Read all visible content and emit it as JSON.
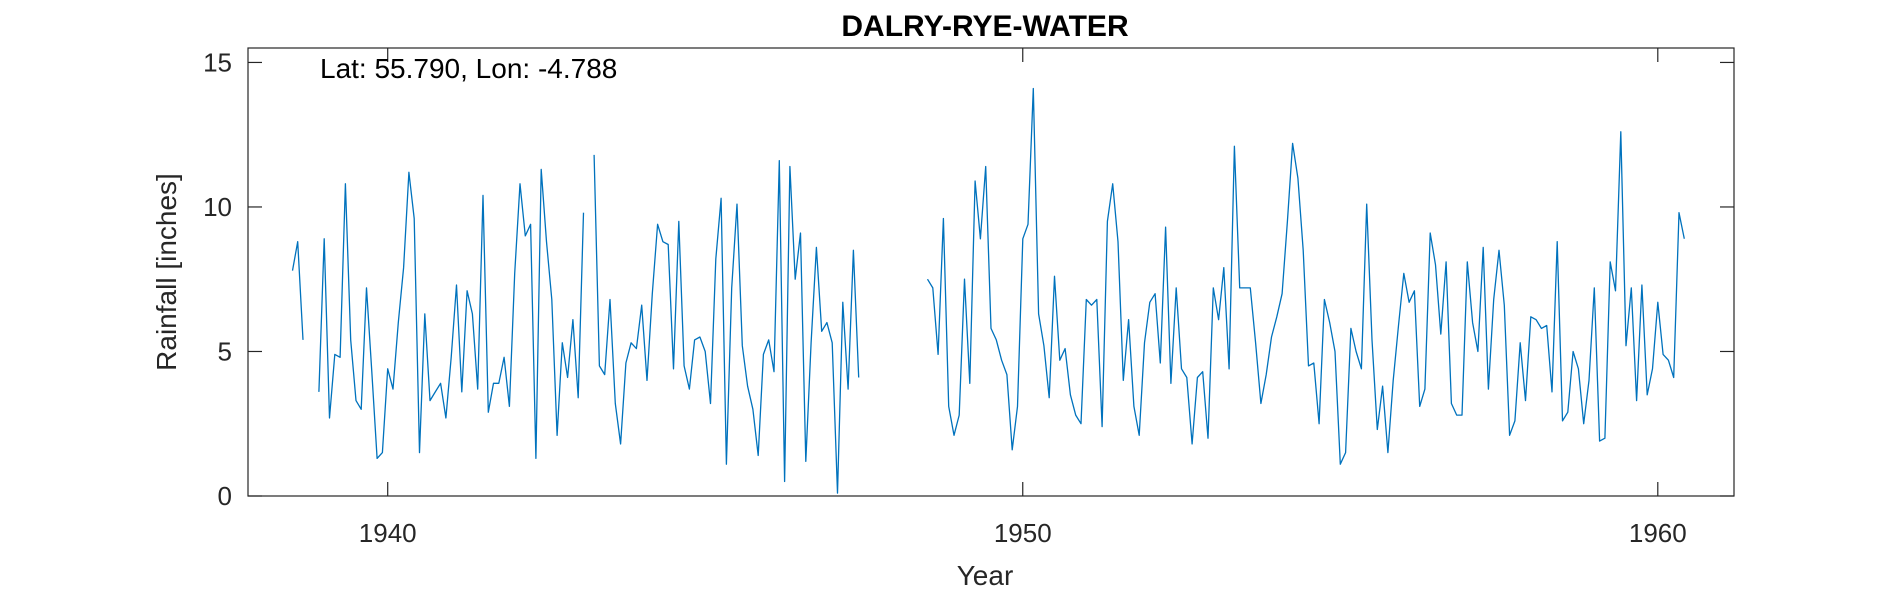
{
  "chart_data": {
    "type": "line",
    "title": "DALRY-RYE-WATER",
    "xlabel": "Year",
    "ylabel": "Rainfall [inches]",
    "annotation": "Lat: 55.790, Lon: -4.788",
    "xlim": [
      1937.8,
      1961.2
    ],
    "ylim": [
      0,
      15.5
    ],
    "xticks": [
      1940,
      1950,
      1960
    ],
    "yticks": [
      0,
      5,
      10,
      15
    ],
    "grid": false,
    "line_color": "#0072BD",
    "series": [
      {
        "x_start": 1938.5,
        "step": 0.0833333,
        "values": [
          7.8,
          8.8,
          5.4,
          null,
          null,
          3.6,
          8.9,
          2.7,
          4.9,
          4.8,
          10.8,
          5.4,
          3.3,
          3.0,
          7.2,
          4.3,
          1.3,
          1.5,
          4.4,
          3.7,
          6.0,
          7.9,
          11.2,
          9.6,
          1.5,
          6.3,
          3.3,
          3.6,
          3.9,
          2.7,
          4.8,
          7.3,
          3.6,
          7.1,
          6.3,
          3.7,
          10.4,
          2.9,
          3.9,
          3.9,
          4.8,
          3.1,
          7.7,
          10.8,
          9.0,
          9.4,
          1.3,
          11.3,
          8.8,
          6.8,
          2.1,
          5.3,
          4.1,
          6.1,
          3.4,
          9.8,
          null,
          11.8,
          4.5,
          4.2,
          6.8,
          3.2,
          1.8,
          4.6,
          5.3,
          5.1,
          6.6,
          4.0,
          7.0,
          9.4,
          8.8,
          8.7,
          4.4,
          9.5,
          4.5,
          3.7,
          5.4,
          5.5,
          5.0,
          3.2,
          8.2,
          10.3,
          1.1,
          7.2,
          10.1,
          5.2,
          3.8,
          3.0,
          1.4,
          4.9,
          5.4,
          4.3,
          11.6,
          0.5,
          11.4,
          7.5,
          9.1,
          1.2,
          5.3,
          8.6,
          5.7,
          6.0,
          5.3,
          0.1,
          6.7,
          3.7,
          8.5,
          4.1
        ]
      },
      {
        "x_start": 1948.5,
        "step": 0.0833333,
        "values": [
          7.5,
          7.2,
          4.9,
          9.6,
          3.1,
          2.1,
          2.8,
          7.5,
          3.9,
          10.9,
          8.9,
          11.4,
          5.8,
          5.4,
          4.7,
          4.2,
          1.6,
          3.1,
          8.9,
          9.4,
          14.1,
          6.3,
          5.2,
          3.4,
          7.6,
          4.7,
          5.1,
          3.5,
          2.8,
          2.5,
          6.8,
          6.6,
          6.8,
          2.4,
          9.5,
          10.8,
          8.8,
          4.0,
          6.1,
          3.1,
          2.1,
          5.3,
          6.7,
          7.0,
          4.6,
          9.3,
          3.9,
          7.2,
          4.4,
          4.1,
          1.8,
          4.1,
          4.3,
          2.0,
          7.2,
          6.1,
          7.9,
          4.4,
          12.1,
          7.2,
          7.2,
          7.2,
          5.3,
          3.2,
          4.2,
          5.5,
          6.2,
          7.0,
          9.5,
          12.2,
          11.0,
          8.5,
          4.5,
          4.6,
          2.5,
          6.8,
          6.0,
          5.0,
          1.1,
          1.5,
          5.8,
          5.0,
          4.4,
          10.1,
          5.4,
          2.3,
          3.8,
          1.5,
          4.0,
          5.9,
          7.7,
          6.7,
          7.1,
          3.1,
          3.7,
          9.1,
          8.0,
          5.6,
          8.1,
          3.2,
          2.8,
          2.8,
          8.1,
          6.0,
          5.0,
          8.6,
          3.7,
          6.8,
          8.5,
          6.6,
          2.1,
          2.6,
          5.3,
          3.3,
          6.2,
          6.1,
          5.8,
          5.9,
          3.6,
          8.8,
          2.6,
          2.9,
          5.0,
          4.4,
          2.5,
          4.0,
          7.2,
          1.9,
          2.0,
          8.1,
          7.1,
          12.6,
          5.2,
          7.2,
          3.3,
          7.3,
          3.5,
          4.4,
          6.7,
          4.9,
          4.7,
          4.1,
          9.8,
          8.9
        ]
      }
    ]
  }
}
